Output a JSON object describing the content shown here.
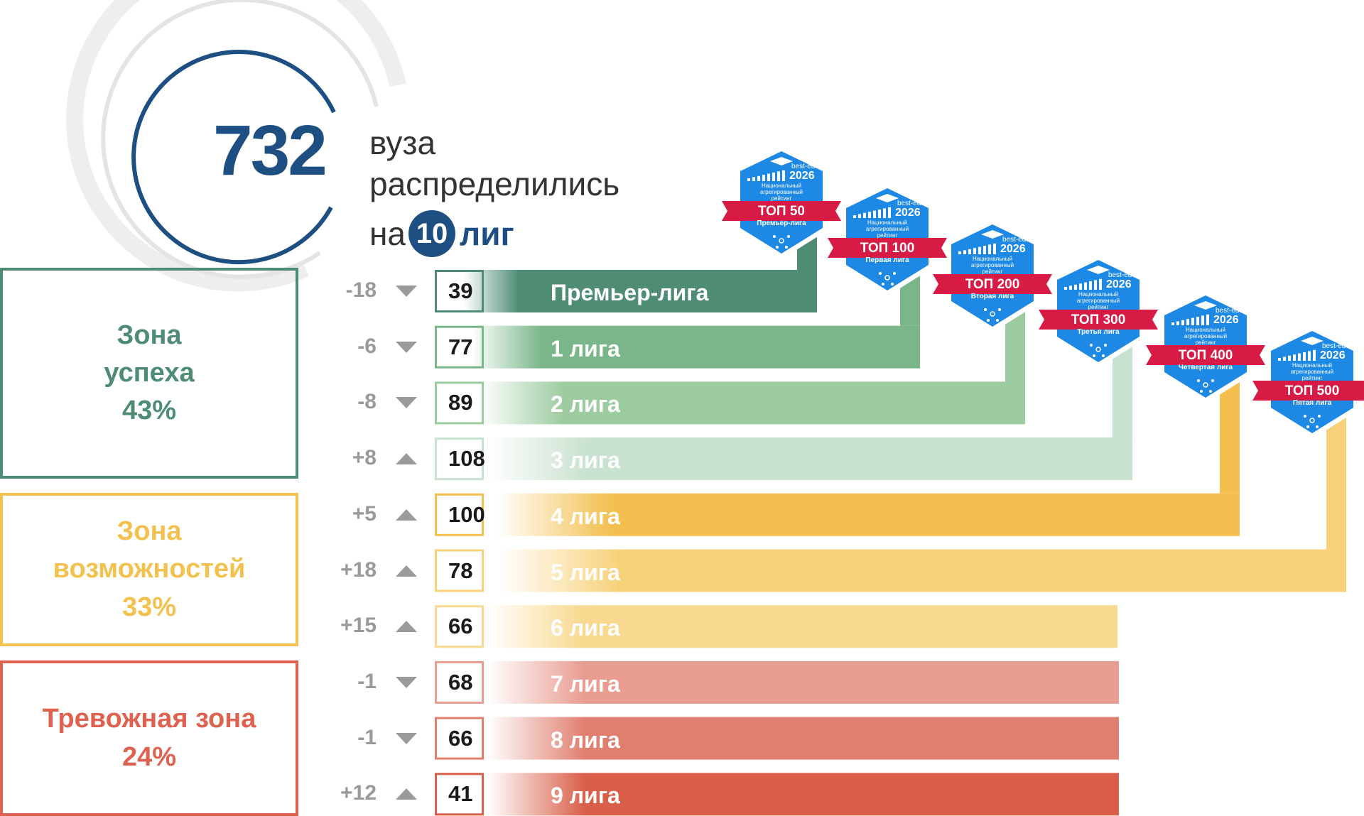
{
  "header": {
    "total": "732",
    "line1": "вуза",
    "line2": "распределились",
    "line3_prefix": "на",
    "leagues_count": "10",
    "line3_suffix": "лиг"
  },
  "zones": [
    {
      "label_line1": "Зона",
      "label_line2": "успеха",
      "percent": "43%",
      "color": "#4e8c74"
    },
    {
      "label_line1": "Зона",
      "label_line2": "возможностей",
      "percent": "33%",
      "color": "#f2c14e"
    },
    {
      "label_line1": "Тревожная зона",
      "label_line2": "",
      "percent": "24%",
      "color": "#df6250"
    }
  ],
  "badge_common": {
    "site": "best-edu.ru",
    "year": "2026",
    "sub1": "Национальный",
    "sub2": "агрегированный",
    "sub3": "рейтинг",
    "badge_color": "#1e88e5",
    "ribbon_color": "#d81b45"
  },
  "chart_data": {
    "type": "bar",
    "title": "732 вуза распределились на 10 лиг",
    "categories": [
      "Премьер-лига",
      "1 лига",
      "2 лига",
      "3 лига",
      "4 лига",
      "5 лига",
      "6 лига",
      "7 лига",
      "8 лига",
      "9 лига"
    ],
    "values": [
      39,
      77,
      89,
      108,
      100,
      78,
      66,
      68,
      66,
      41
    ],
    "value_labels": [
      "39",
      "77",
      "89",
      "108",
      "100",
      "78",
      "66",
      "68",
      "66",
      "41"
    ],
    "deltas": [
      "-18",
      "-6",
      "-8",
      "+8",
      "+5",
      "+18",
      "+15",
      "-1",
      "-1",
      "+12"
    ],
    "directions": [
      "down",
      "down",
      "down",
      "up",
      "up",
      "up",
      "up",
      "down",
      "down",
      "up"
    ],
    "colors": [
      "#4e8c74",
      "#7ab68a",
      "#9ccb9f",
      "#c9e2cf",
      "#f3bf4f",
      "#f7d27a",
      "#f8d98f",
      "#e99c90",
      "#e07f6f",
      "#d95f4a"
    ],
    "badges": [
      {
        "top": "ТОП 50",
        "league": "Премьер-лига"
      },
      {
        "top": "ТОП 100",
        "league": "Первая лига"
      },
      {
        "top": "ТОП 200",
        "league": "Вторая лига"
      },
      {
        "top": "ТОП 300",
        "league": "Третья лига"
      },
      {
        "top": "ТОП 400",
        "league": "Четвертая лига"
      },
      {
        "top": "ТОП 500",
        "league": "Пятая лига"
      }
    ]
  }
}
